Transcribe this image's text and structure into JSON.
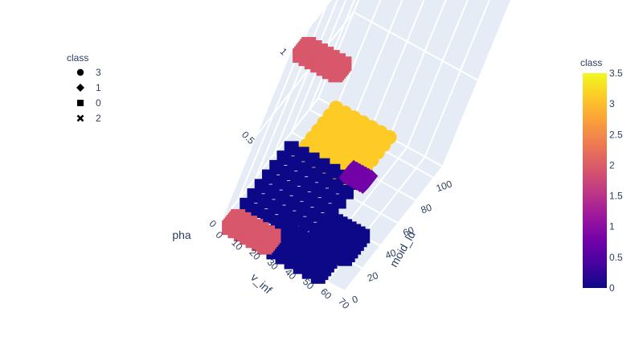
{
  "chart_data": {
    "type": "scatter3d",
    "title": "",
    "axes": {
      "x": {
        "label": "v_inf",
        "ticks": [
          "0",
          "10",
          "20",
          "30",
          "40",
          "50",
          "60",
          "70"
        ],
        "range": [
          0,
          70
        ]
      },
      "y": {
        "label": "moid_ld",
        "ticks": [
          "0",
          "20",
          "40",
          "60",
          "80",
          "100"
        ],
        "range": [
          0,
          110
        ]
      },
      "z": {
        "label": "pha",
        "ticks": [
          "0",
          "0.5",
          "1"
        ],
        "range": [
          0,
          1
        ]
      }
    },
    "color_by": "class",
    "legend": {
      "title": "class",
      "position": "top-left",
      "entries": [
        {
          "label": "3",
          "symbol": "circle"
        },
        {
          "label": "1",
          "symbol": "diamond"
        },
        {
          "label": "0",
          "symbol": "square"
        },
        {
          "label": "2",
          "symbol": "x"
        }
      ]
    },
    "colorbar": {
      "title": "class",
      "ticks": [
        "0",
        "0.5",
        "1",
        "1.5",
        "2",
        "2.5",
        "3",
        "3.5"
      ],
      "range": [
        0,
        3.5
      ],
      "colorscale": [
        "#0d0887",
        "#46039f",
        "#7201a8",
        "#9c179e",
        "#bd3786",
        "#d8576b",
        "#ed7953",
        "#fb9f3a",
        "#fdca26",
        "#f0f921"
      ]
    },
    "clusters": [
      {
        "class": 2,
        "color": "#d8576b",
        "marker": "x",
        "v_inf": [
          5,
          25
        ],
        "moid_ld": [
          0,
          10
        ],
        "pha": [
          1,
          1
        ]
      },
      {
        "class": 2,
        "color": "#d8576b",
        "marker": "x",
        "v_inf": [
          5,
          25
        ],
        "moid_ld": [
          0,
          10
        ],
        "pha": [
          0,
          0
        ]
      },
      {
        "class": 0,
        "color": "#0d0887",
        "marker": "square",
        "v_inf": [
          5,
          40
        ],
        "moid_ld": [
          20,
          70
        ],
        "pha": [
          0,
          0
        ]
      },
      {
        "class": 0,
        "color": "#0d0887",
        "marker": "square",
        "v_inf": [
          25,
          55
        ],
        "moid_ld": [
          0,
          20
        ],
        "pha": [
          0,
          0
        ]
      },
      {
        "class": 0,
        "color": "#0d0887",
        "marker": "square",
        "v_inf": [
          45,
          60
        ],
        "moid_ld": [
          20,
          40
        ],
        "pha": [
          0,
          0
        ]
      },
      {
        "class": 1,
        "color": "#7201a8",
        "marker": "diamond",
        "v_inf": [
          35,
          45
        ],
        "moid_ld": [
          70,
          80
        ],
        "pha": [
          0,
          0
        ]
      },
      {
        "class": 3,
        "color": "#fdca26",
        "marker": "circle",
        "v_inf": [
          10,
          40
        ],
        "moid_ld": [
          70,
          110
        ],
        "pha": [
          0,
          0
        ]
      }
    ]
  }
}
